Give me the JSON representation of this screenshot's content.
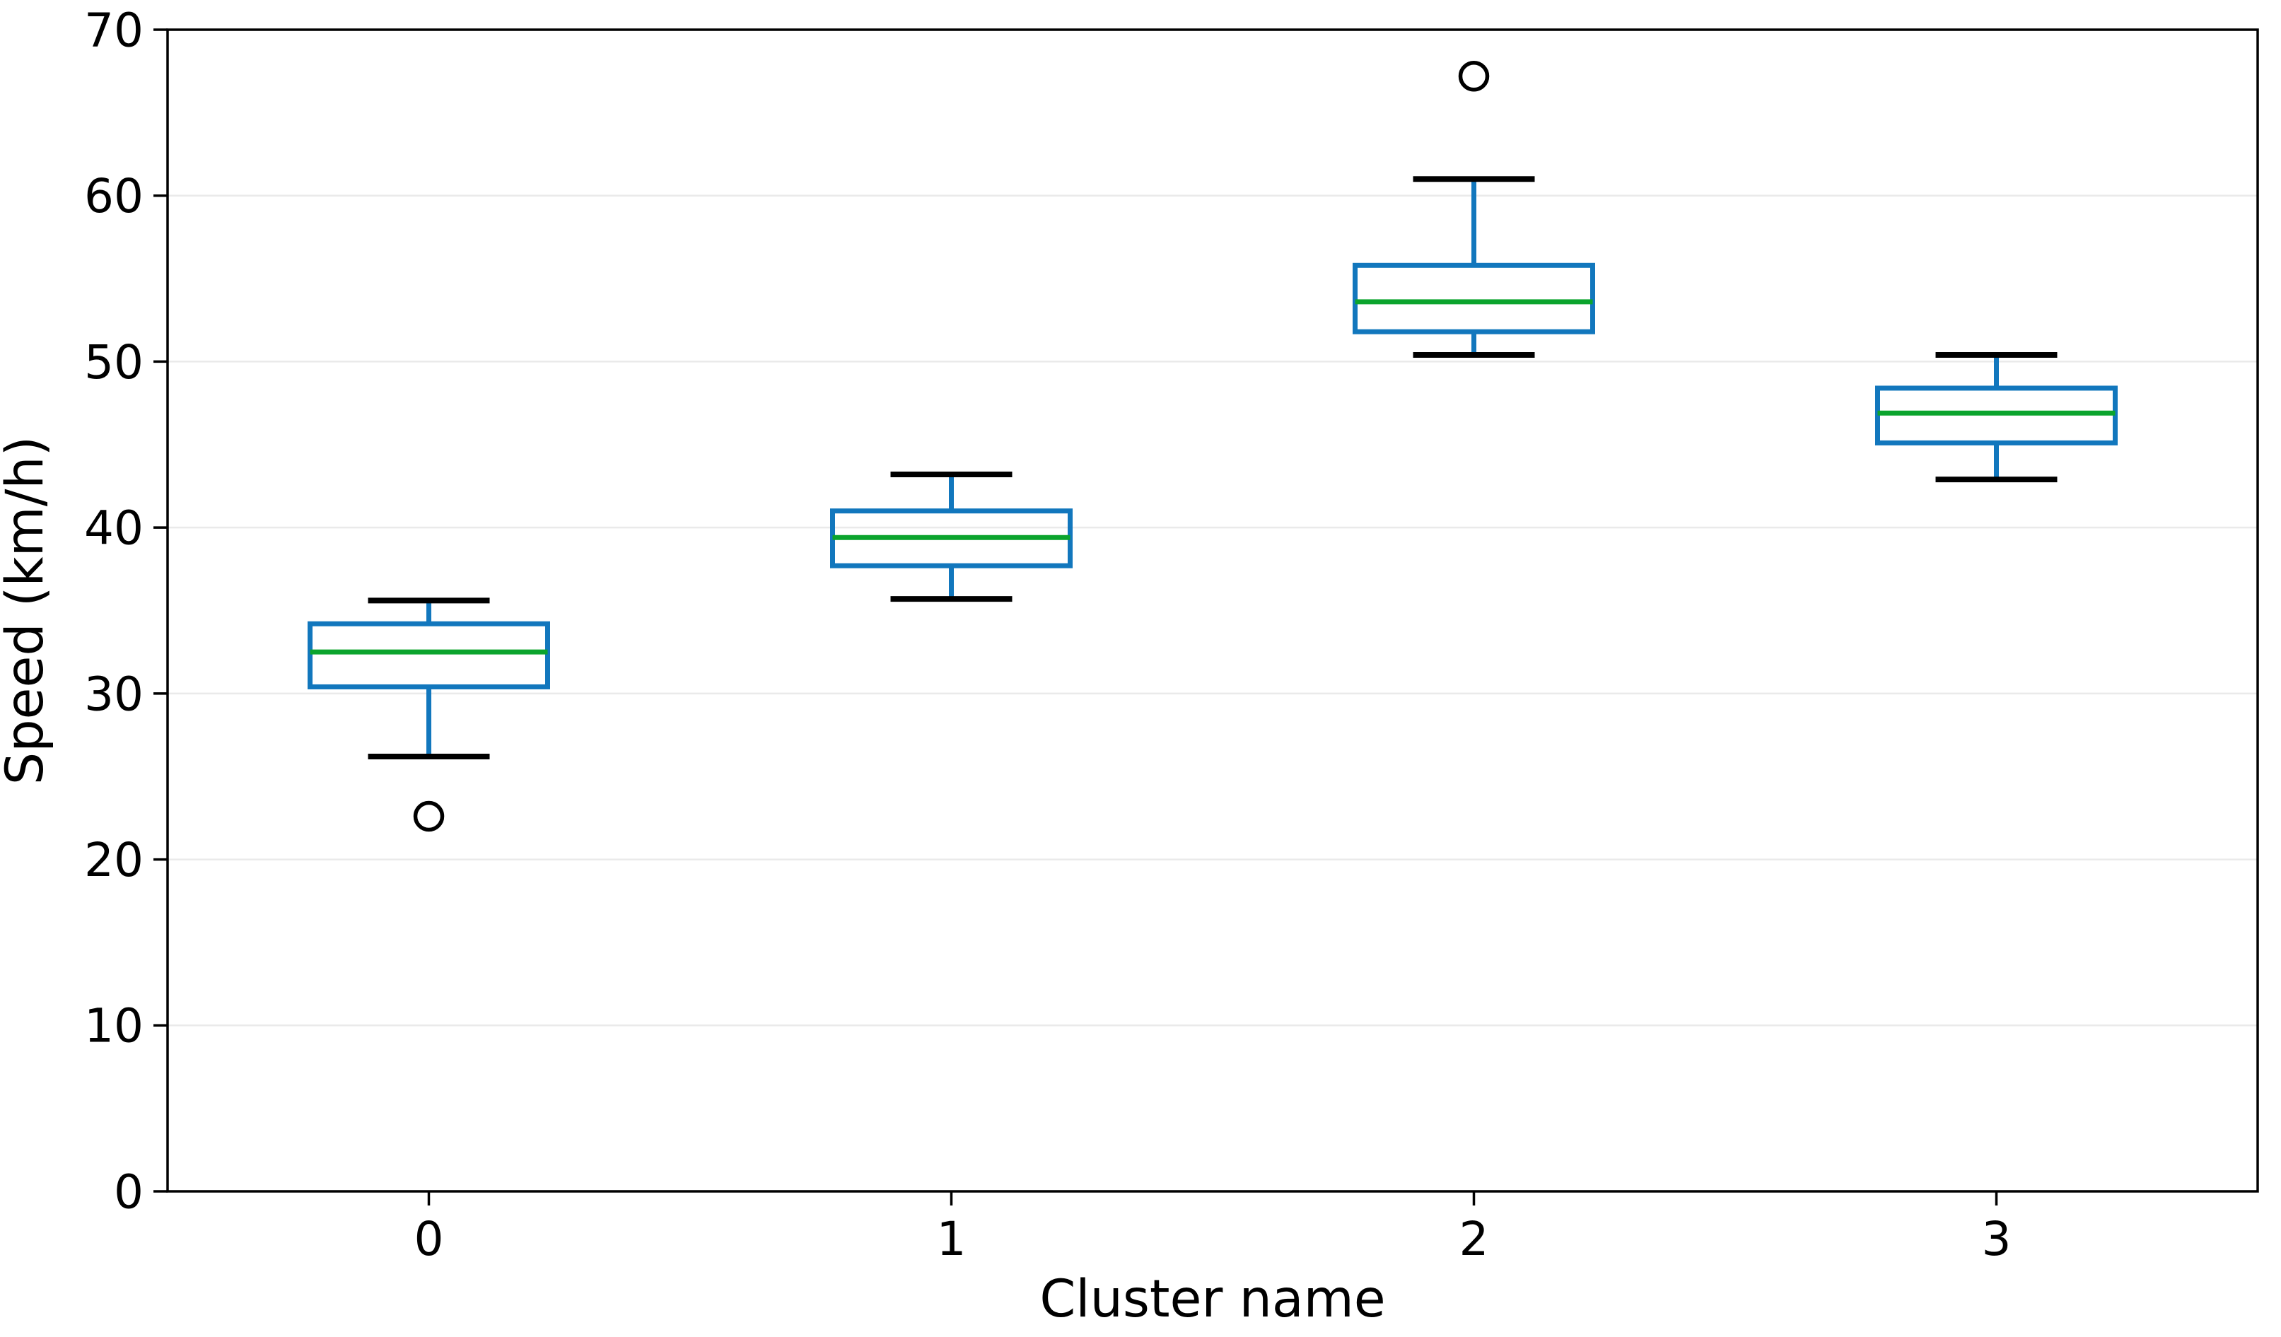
{
  "chart_data": {
    "type": "boxplot",
    "title": "",
    "xlabel": "Cluster name",
    "ylabel": "Speed (km/h)",
    "categories": [
      "0",
      "1",
      "2",
      "3"
    ],
    "ylim": [
      0,
      70
    ],
    "yticks": [
      0,
      10,
      20,
      30,
      40,
      50,
      60,
      70
    ],
    "grid": "horizontal-light-gray-at-each-ytick",
    "legend": "none",
    "boxes": [
      {
        "category": "0",
        "whisker_low": 26.2,
        "q1": 30.4,
        "median": 32.5,
        "q3": 34.2,
        "whisker_high": 35.6,
        "outliers": [
          22.6
        ]
      },
      {
        "category": "1",
        "whisker_low": 35.7,
        "q1": 37.7,
        "median": 39.4,
        "q3": 41.0,
        "whisker_high": 43.2,
        "outliers": []
      },
      {
        "category": "2",
        "whisker_low": 50.4,
        "q1": 51.8,
        "median": 53.6,
        "q3": 55.8,
        "whisker_high": 61.0,
        "outliers": [
          67.2
        ]
      },
      {
        "category": "3",
        "whisker_low": 42.9,
        "q1": 45.1,
        "median": 46.9,
        "q3": 48.4,
        "whisker_high": 50.4,
        "outliers": []
      }
    ],
    "colors": {
      "box_edge": "#1277bd",
      "median": "#0ba42d",
      "whisker": "#1277bd",
      "cap": "#000000",
      "outlier_edge": "#000000",
      "grid": "#eaeaea",
      "spine": "#000000",
      "text": "#000000",
      "background": "#ffffff"
    }
  }
}
